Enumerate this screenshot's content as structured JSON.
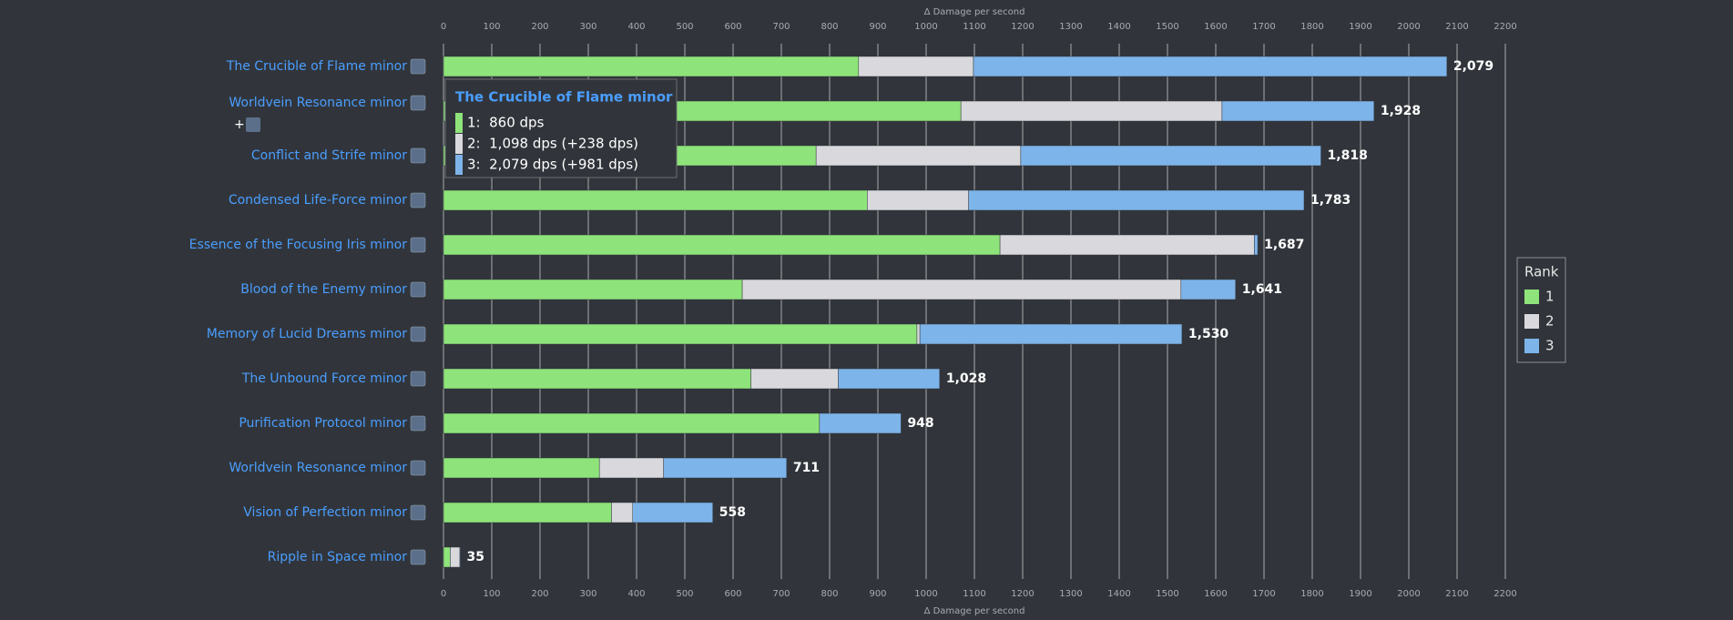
{
  "chart_data": {
    "type": "stacked-bar-horizontal",
    "xlabel": "Δ Damage per second",
    "categories": [
      "The Crucible of Flame minor",
      "Worldvein Resonance minor",
      "Conflict and Strife minor",
      "Condensed Life-Force minor",
      "Essence of the Focusing Iris minor",
      "Blood of the Enemy minor",
      "Memory of Lucid Dreams minor",
      "The Unbound Force minor",
      "Purification Protocol minor",
      "Worldvein Resonance minor",
      "Vision of Perfection minor",
      "Ripple in Space minor"
    ],
    "category_notes": [
      null,
      "+",
      null,
      null,
      null,
      null,
      null,
      null,
      null,
      null,
      null,
      null
    ],
    "series": [
      {
        "name": "1",
        "color": "#8ee47a",
        "values": [
          860,
          1072,
          772,
          878,
          1153,
          619,
          981,
          637,
          779,
          323,
          348,
          14
        ]
      },
      {
        "name": "2",
        "color": "#d9d9dd",
        "values": [
          238,
          541,
          424,
          210,
          527,
          909,
          6,
          181,
          0,
          133,
          44,
          20
        ]
      },
      {
        "name": "3",
        "color": "#7db4ea",
        "values": [
          981,
          315,
          622,
          695,
          7,
          113,
          543,
          210,
          169,
          255,
          166,
          1
        ]
      }
    ],
    "totals": [
      2079,
      1928,
      1818,
      1783,
      1687,
      1641,
      1530,
      1028,
      948,
      711,
      558,
      35
    ],
    "total_labels": [
      "2,079",
      "1,928",
      "1,818",
      "1,783",
      "1,687",
      "1,641",
      "1,530",
      "1,028",
      "948",
      "711",
      "558",
      "35"
    ],
    "xlim": [
      0,
      2200
    ],
    "xticks": [
      0,
      100,
      200,
      300,
      400,
      500,
      600,
      700,
      800,
      900,
      1000,
      1100,
      1200,
      1300,
      1400,
      1500,
      1600,
      1700,
      1800,
      1900,
      2000,
      2100,
      2200
    ],
    "grid": true,
    "legend": {
      "title": "Rank",
      "position": "right"
    },
    "tooltip": {
      "title": "The Crucible of Flame minor",
      "rows": [
        "1:  860 dps",
        "2:  1,098 dps (+238 dps)",
        "3:  2,079 dps (+981 dps)"
      ]
    }
  }
}
